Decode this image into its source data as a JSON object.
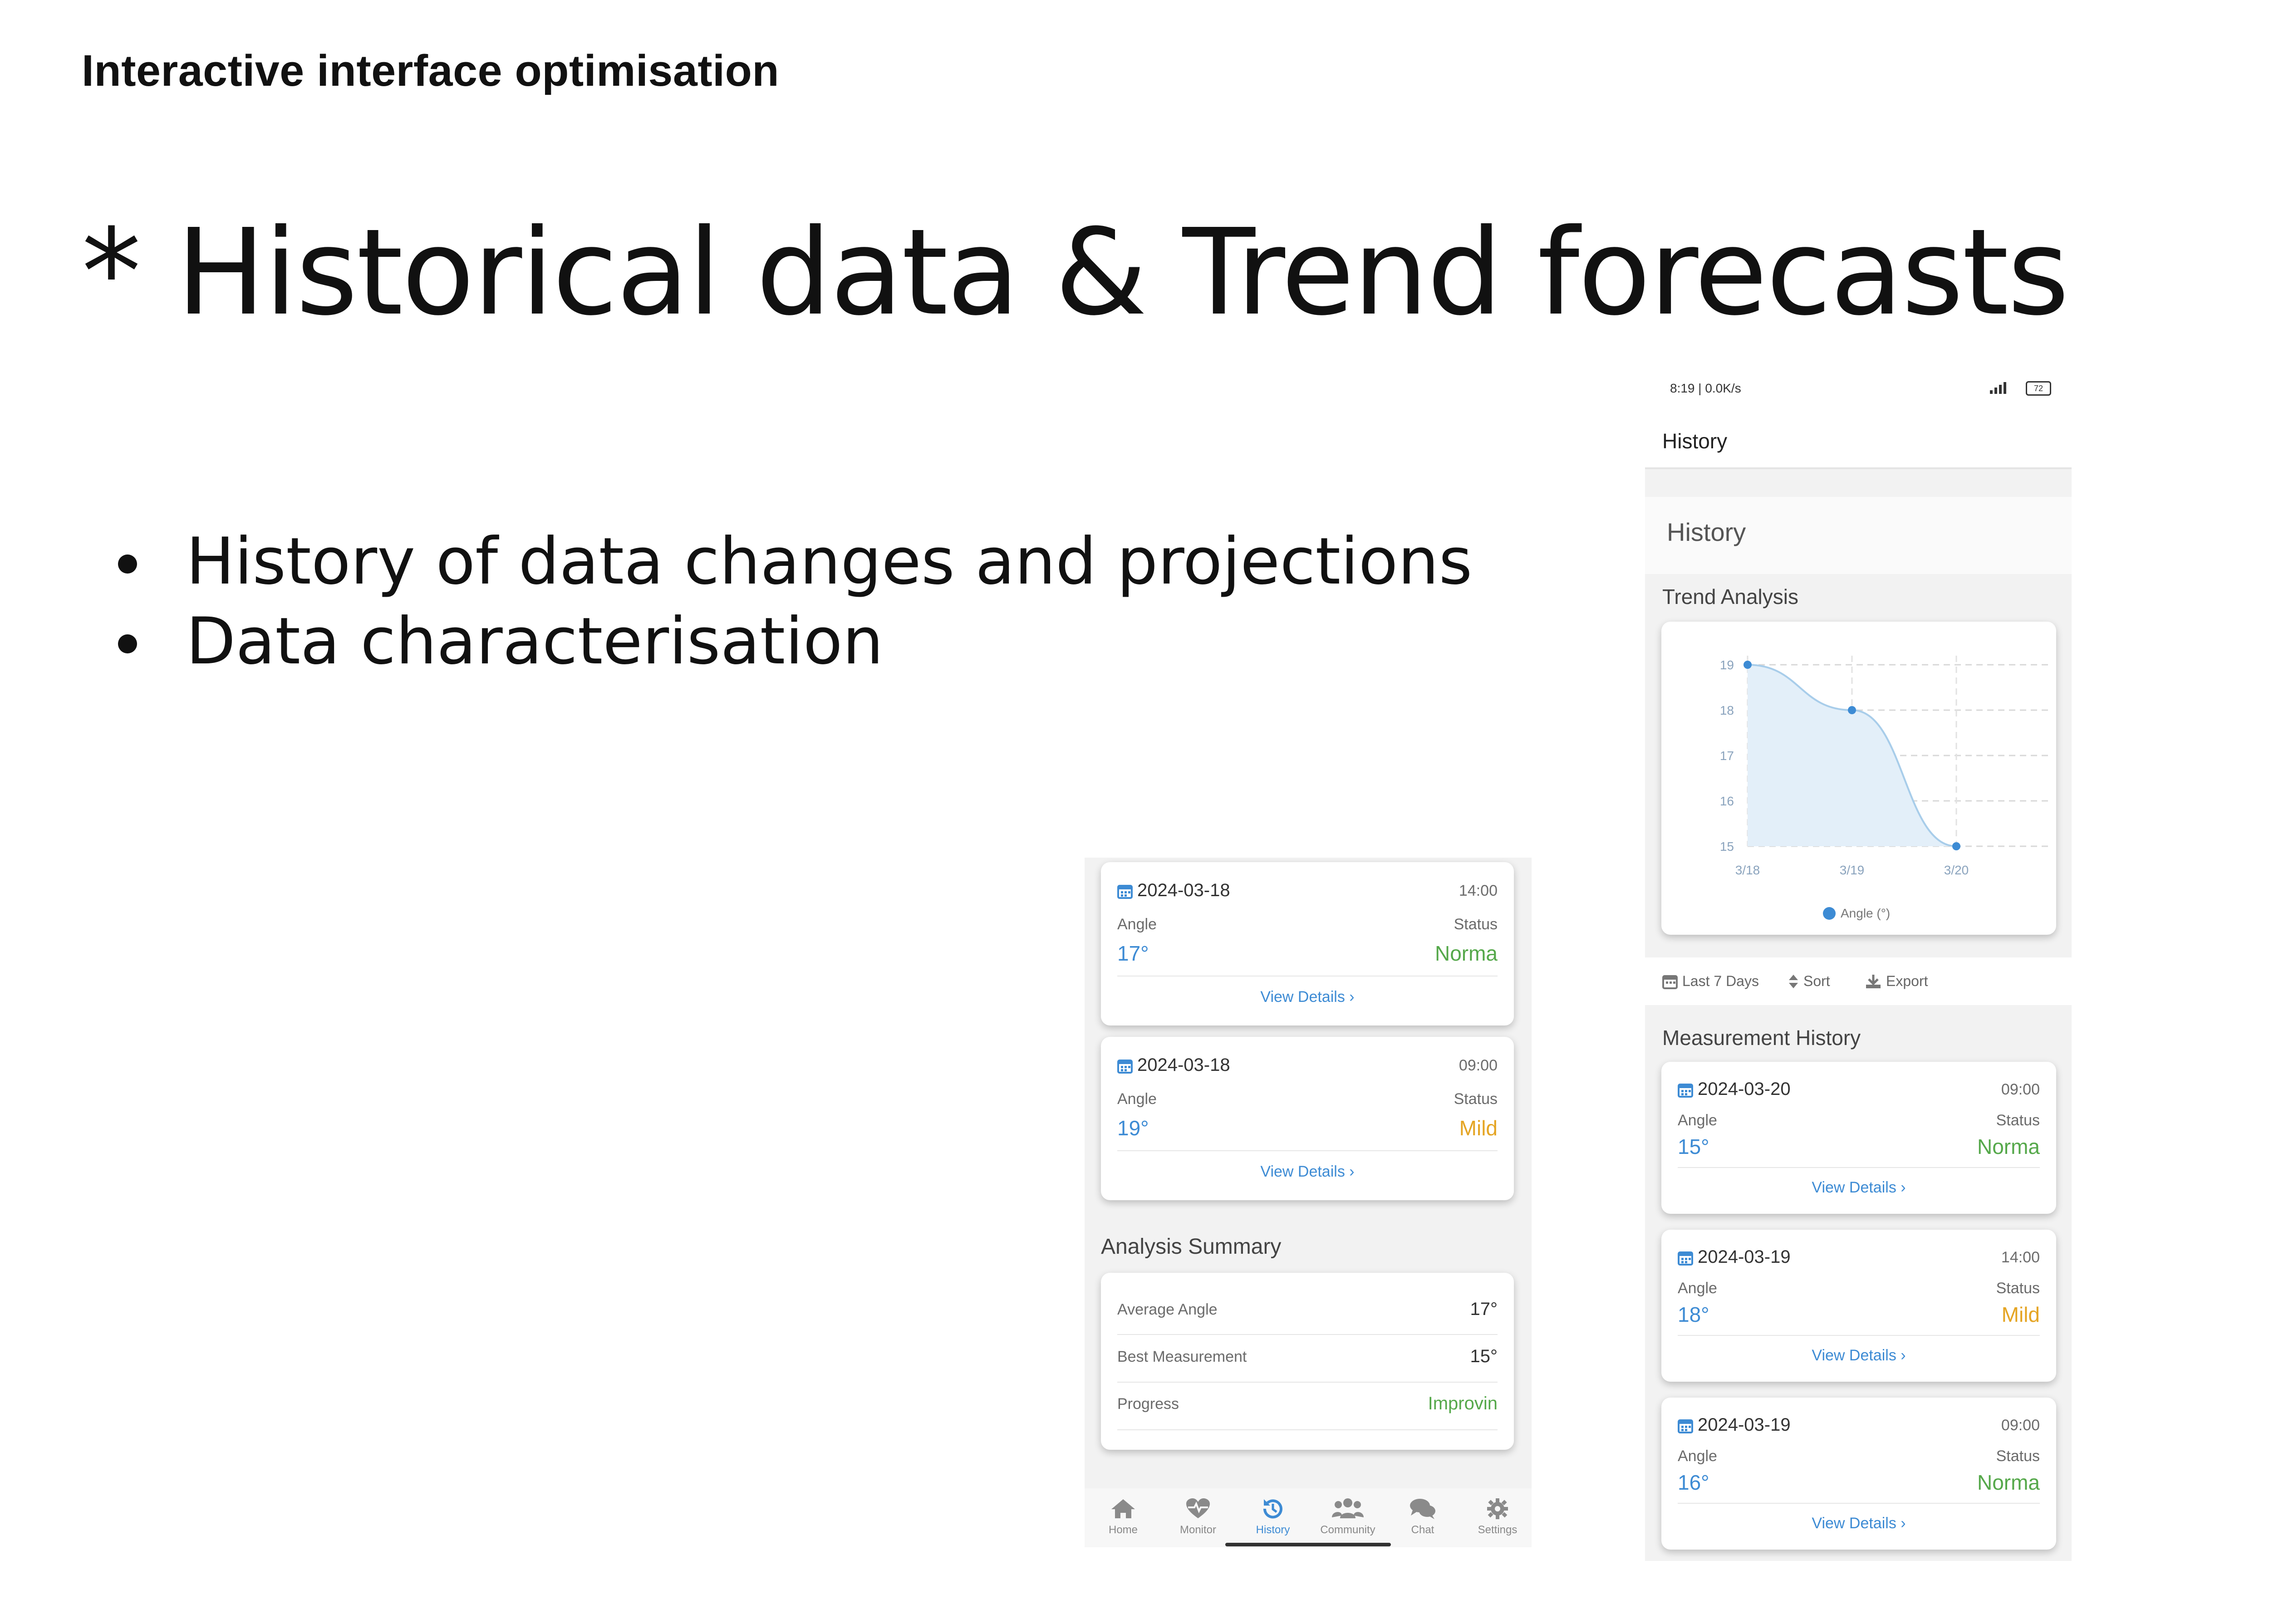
{
  "slide": {
    "kicker": "Interactive interface optimisation",
    "title": "* Historical data & Trend forecasts",
    "bullets": [
      "History of data changes and projections",
      "Data characterisation"
    ]
  },
  "left_screen": {
    "records": [
      {
        "date": "2024-03-18",
        "time": "14:00",
        "angle_label": "Angle",
        "status_label": "Status",
        "angle": "17°",
        "status": "Norma",
        "link": "View Details ›"
      },
      {
        "date": "2024-03-18",
        "time": "09:00",
        "angle_label": "Angle",
        "status_label": "Status",
        "angle": "19°",
        "status": "Mild",
        "link": "View Details ›"
      }
    ],
    "summary_title": "Analysis Summary",
    "summary": [
      {
        "label": "Average Angle",
        "value": "17°"
      },
      {
        "label": "Best Measurement",
        "value": "15°"
      },
      {
        "label": "Progress",
        "value": "Improvin"
      }
    ],
    "nav": [
      {
        "label": "Home",
        "icon": "home-icon"
      },
      {
        "label": "Monitor",
        "icon": "heartbeat-icon"
      },
      {
        "label": "History",
        "icon": "history-icon"
      },
      {
        "label": "Community",
        "icon": "users-icon"
      },
      {
        "label": "Chat",
        "icon": "chat-icon"
      },
      {
        "label": "Settings",
        "icon": "gear-icon"
      }
    ],
    "active_nav": "History"
  },
  "right_screen": {
    "status_bar": {
      "left": "8:19 | 0.0K/s",
      "battery": "72"
    },
    "appbar_title": "History",
    "page_heading": "History",
    "trend_title": "Trend Analysis",
    "toolbar": {
      "range": "Last 7 Days",
      "sort": "Sort",
      "export": "Export"
    },
    "measure_title": "Measurement History",
    "records": [
      {
        "date": "2024-03-20",
        "time": "09:00",
        "angle_label": "Angle",
        "status_label": "Status",
        "angle": "15°",
        "status": "Norma",
        "link": "View Details ›"
      },
      {
        "date": "2024-03-19",
        "time": "14:00",
        "angle_label": "Angle",
        "status_label": "Status",
        "angle": "18°",
        "status": "Mild",
        "link": "View Details ›"
      },
      {
        "date": "2024-03-19",
        "time": "09:00",
        "angle_label": "Angle",
        "status_label": "Status",
        "angle": "16°",
        "status": "Norma",
        "link": "View Details ›"
      }
    ]
  },
  "colors": {
    "accent": "#3d8bd4",
    "normal": "#55a84a",
    "mild": "#e5a524"
  },
  "chart_data": {
    "type": "area",
    "categories": [
      "3/18",
      "3/19",
      "3/20"
    ],
    "series": [
      {
        "name": "Angle (°)",
        "values": [
          19,
          18,
          15
        ]
      }
    ],
    "yticks": [
      15,
      16,
      17,
      18,
      19
    ],
    "ylim": [
      15,
      19
    ],
    "grid": true,
    "legend": "bottom-center"
  }
}
